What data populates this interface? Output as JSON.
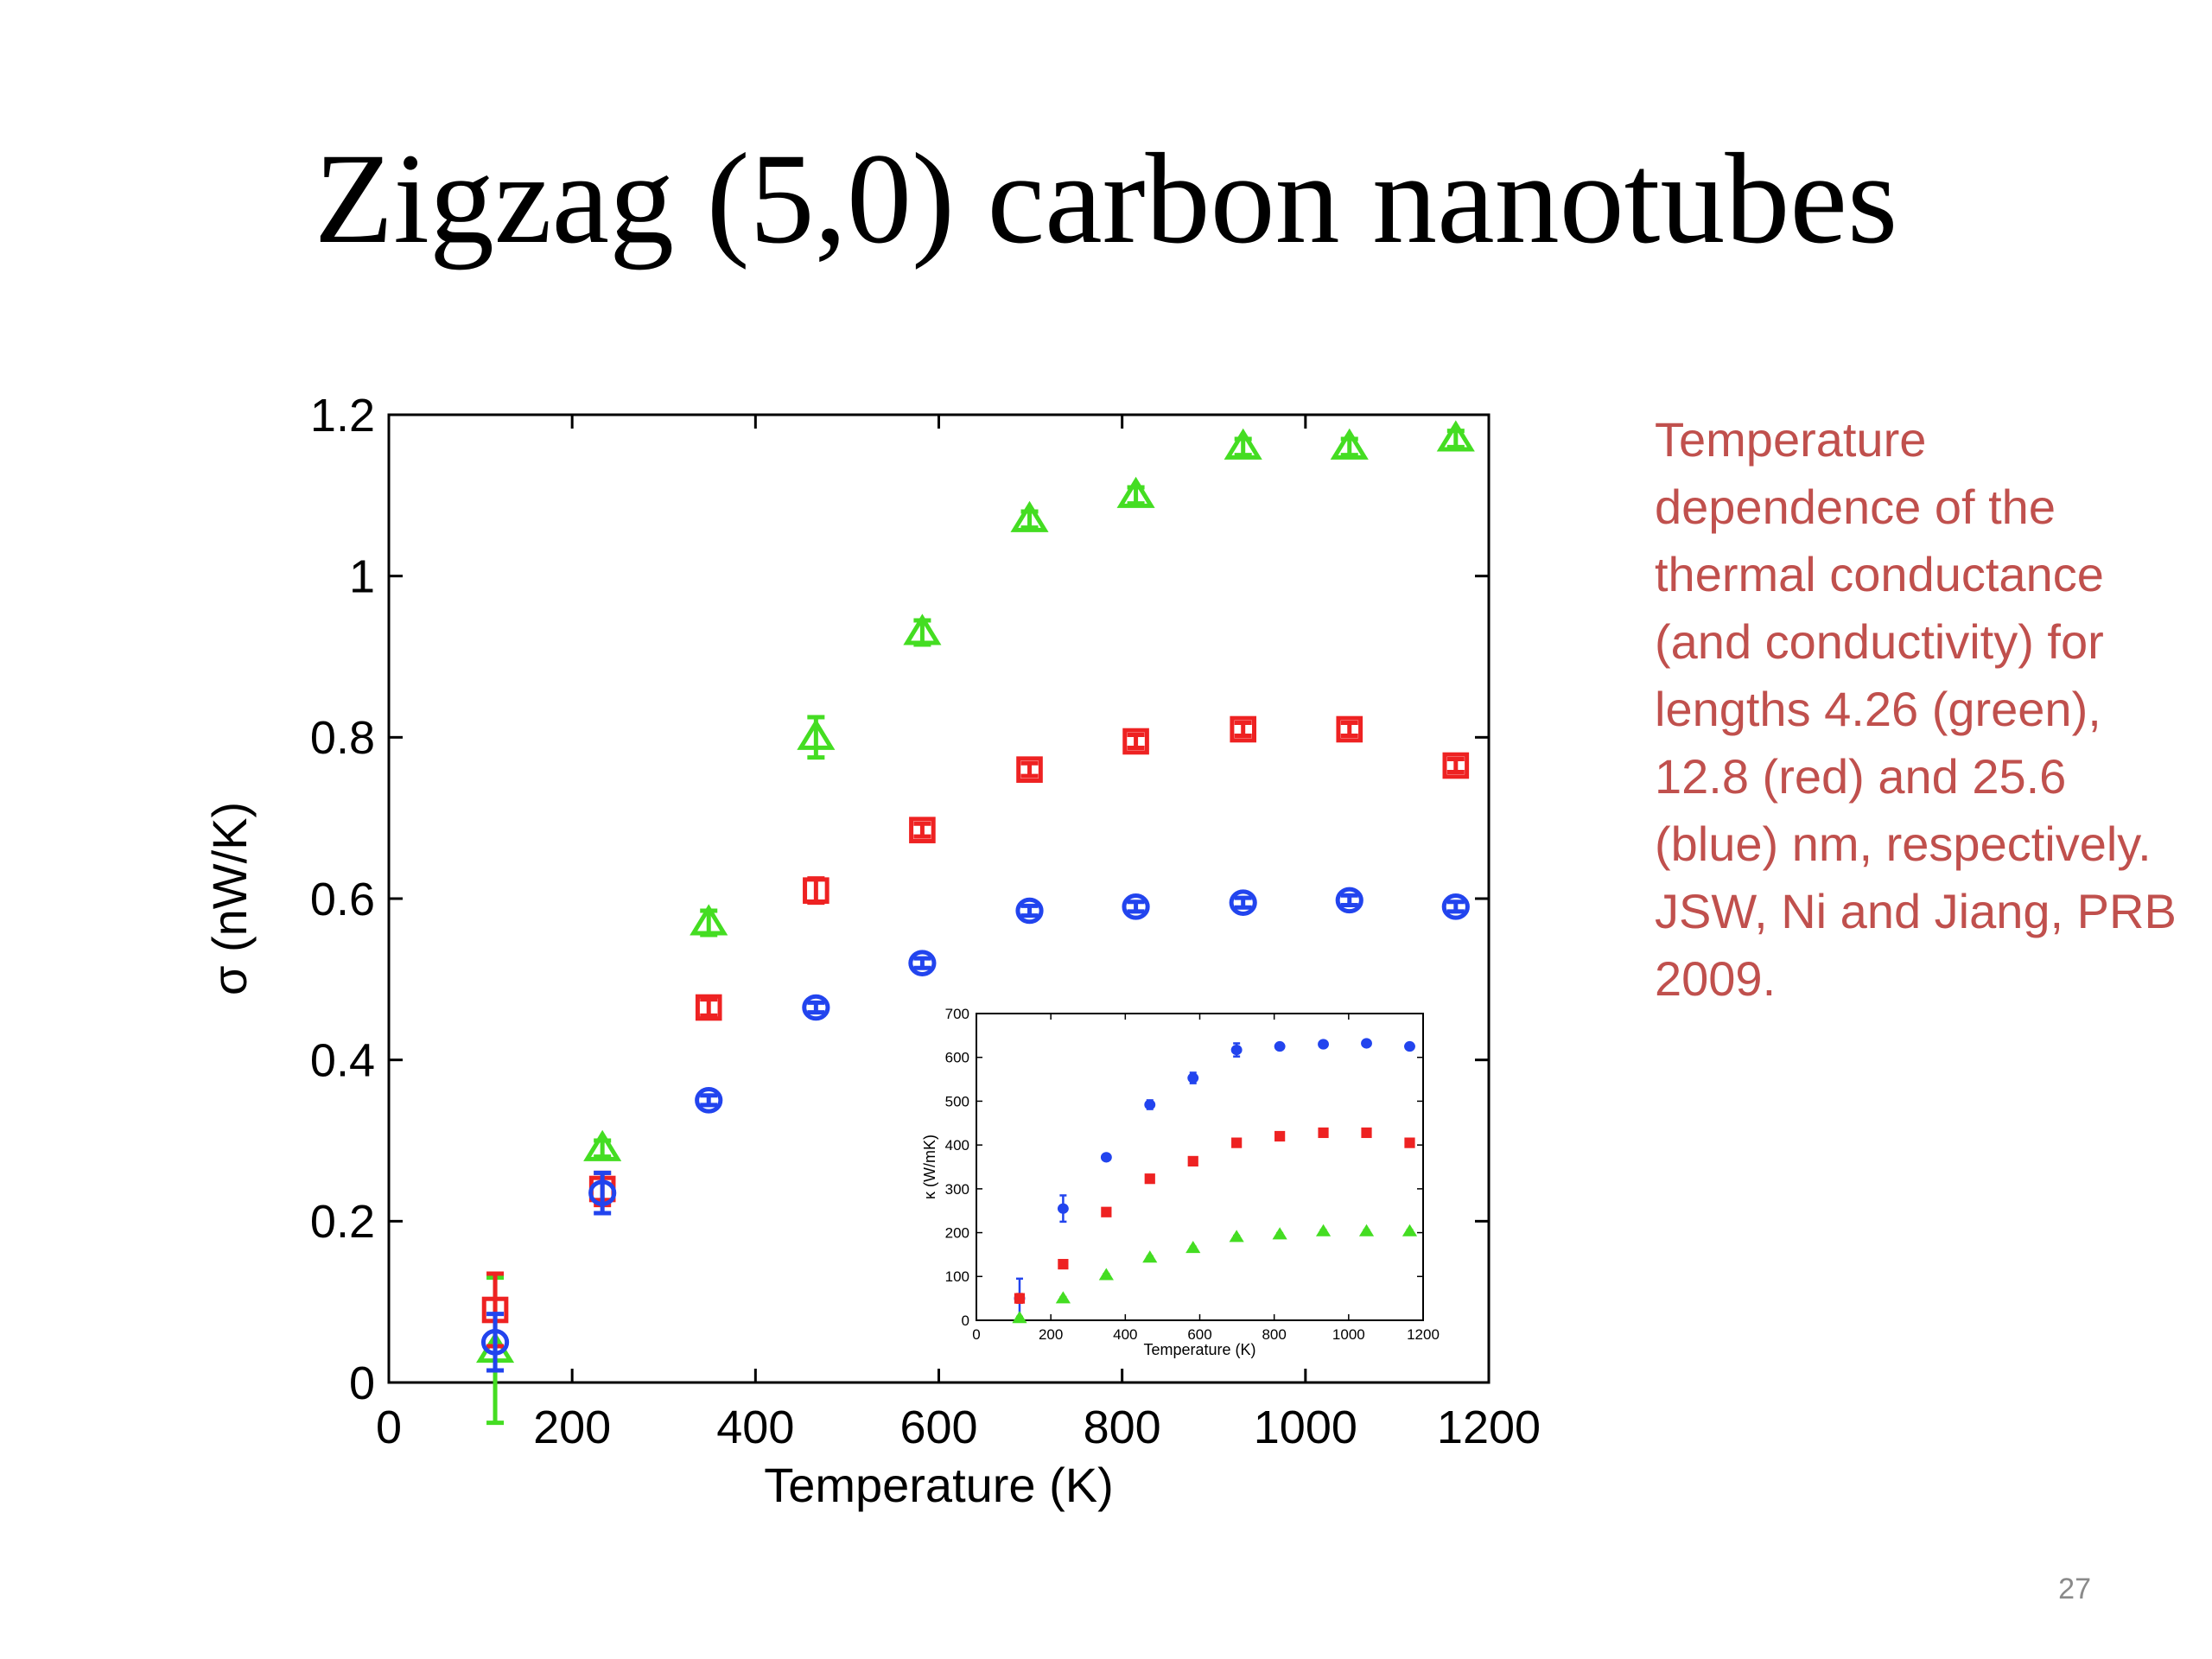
{
  "slide": {
    "title": "Zigzag (5,0) carbon nanotubes",
    "caption": "Temperature dependence of the thermal conductance (and conductivity) for lengths 4.26 (green), 12.8 (red) and 25.6 (blue) nm, respectively. JSW, Ni and Jiang, PRB 2009.",
    "page_number": "27"
  },
  "chart_data": [
    {
      "type": "scatter",
      "xlabel": "Temperature (K)",
      "ylabel": "σ (nW/K)",
      "xlim": [
        0,
        1200
      ],
      "ylim": [
        0,
        1.2
      ],
      "xticks": [
        0,
        200,
        400,
        600,
        800,
        1000,
        1200
      ],
      "yticks": [
        0,
        0.2,
        0.4,
        0.6,
        0.8,
        1,
        1.2
      ],
      "x": [
        116,
        233,
        349,
        466,
        582,
        699,
        815,
        932,
        1048,
        1164
      ],
      "series": [
        {
          "marker": "triangle",
          "color": "#44dd22",
          "values": [
            0.04,
            0.29,
            0.57,
            0.8,
            0.93,
            1.07,
            1.1,
            1.16,
            1.16,
            1.17
          ],
          "errors": [
            0.09,
            0.01,
            0.015,
            0.025,
            0.015,
            0.01,
            0.01,
            0.01,
            0.01,
            0.01
          ]
        },
        {
          "marker": "square",
          "color": "#ee2222",
          "values": [
            0.09,
            0.24,
            0.465,
            0.61,
            0.685,
            0.76,
            0.795,
            0.81,
            0.81,
            0.765
          ],
          "errors": [
            0.045,
            0.02,
            0.01,
            0.015,
            0.008,
            0.008,
            0.008,
            0.008,
            0.008,
            0.008
          ]
        },
        {
          "marker": "circle",
          "color": "#2244ee",
          "values": [
            0.05,
            0.235,
            0.35,
            0.465,
            0.52,
            0.585,
            0.59,
            0.595,
            0.598,
            0.59
          ],
          "errors": [
            0.035,
            0.025,
            0.006,
            0.006,
            0.006,
            0.006,
            0.006,
            0.006,
            0.006,
            0.006
          ]
        }
      ]
    },
    {
      "type": "scatter",
      "xlabel": "Temperature (K)",
      "ylabel": "κ (W/mK)",
      "xlim": [
        0,
        1200
      ],
      "ylim": [
        0,
        700
      ],
      "xticks": [
        0,
        200,
        400,
        600,
        800,
        1000,
        1200
      ],
      "yticks": [
        0,
        100,
        200,
        300,
        400,
        500,
        600,
        700
      ],
      "x": [
        116,
        233,
        349,
        466,
        582,
        699,
        815,
        932,
        1048,
        1164
      ],
      "series": [
        {
          "marker": "circle-filled",
          "color": "#2244ee",
          "values": [
            50,
            255,
            372,
            492,
            553,
            617,
            625,
            630,
            632,
            625
          ],
          "errors": [
            45,
            30,
            6,
            10,
            12,
            15,
            5,
            5,
            5,
            5
          ]
        },
        {
          "marker": "square-filled",
          "color": "#ee2222",
          "values": [
            50,
            128,
            247,
            323,
            363,
            405,
            420,
            428,
            428,
            405
          ],
          "errors": [
            10,
            8,
            5,
            8,
            5,
            5,
            5,
            5,
            5,
            5
          ]
        },
        {
          "marker": "triangle-filled",
          "color": "#44dd22",
          "values": [
            5,
            50,
            103,
            143,
            165,
            190,
            196,
            203,
            203,
            203
          ],
          "errors": [
            3,
            3,
            3,
            3,
            3,
            3,
            3,
            3,
            3,
            3
          ]
        }
      ]
    }
  ]
}
